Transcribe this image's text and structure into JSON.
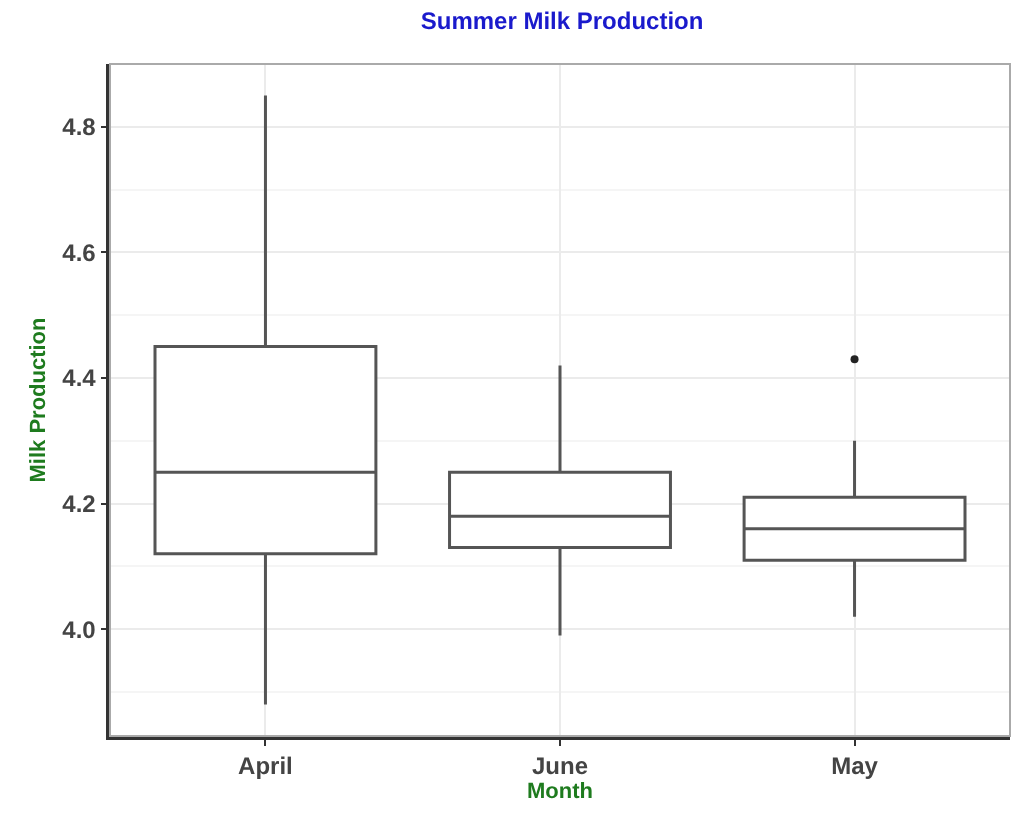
{
  "chart_data": {
    "type": "box",
    "title": "Summer Milk Production",
    "xlabel": "Month",
    "ylabel": "Milk Production",
    "categories": [
      "April",
      "June",
      "May"
    ],
    "boxes": [
      {
        "low": 3.88,
        "q1": 4.12,
        "median": 4.25,
        "q3": 4.45,
        "high": 4.85
      },
      {
        "low": 3.99,
        "q1": 4.13,
        "median": 4.18,
        "q3": 4.25,
        "high": 4.42
      },
      {
        "low": 4.02,
        "q1": 4.11,
        "median": 4.16,
        "q3": 4.21,
        "high": 4.3,
        "outliers": [
          4.43
        ]
      }
    ],
    "color": "#555555",
    "ylim": [
      3.83,
      4.9
    ],
    "yticks": [
      {
        "value": 4,
        "label": "4.0"
      },
      4.2,
      4.4,
      4.6,
      4.8
    ],
    "grid": true
  }
}
